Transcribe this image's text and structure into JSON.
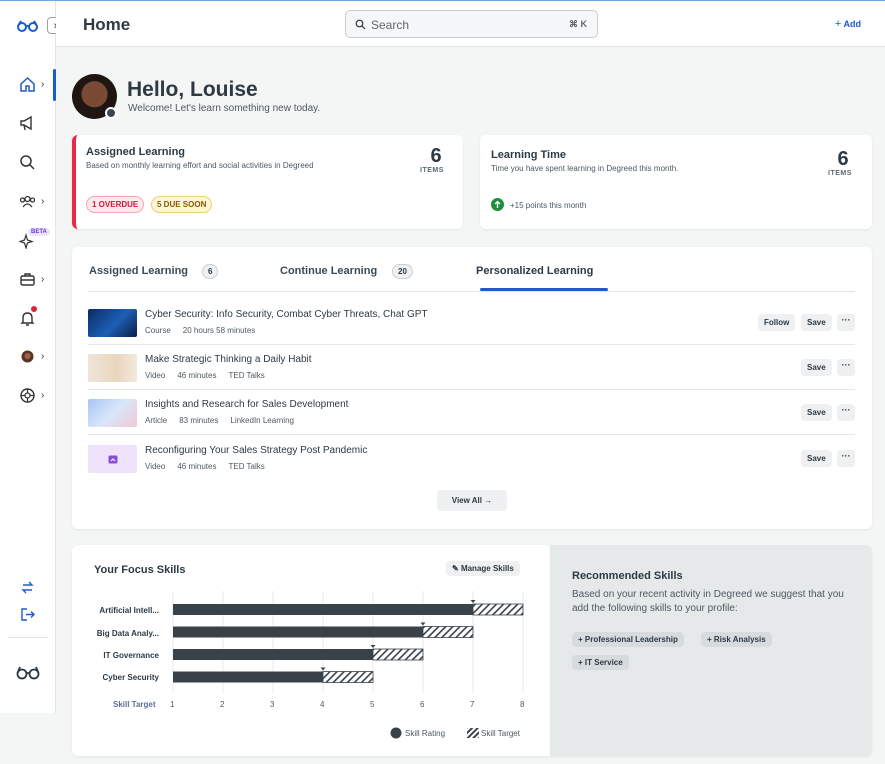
{
  "header": {
    "title": "Home",
    "search_placeholder": "Search",
    "search_shortcut": "⌘ K",
    "add_label": "Add"
  },
  "sidebar": {
    "beta_label": "BETA",
    "icons": [
      "logo-icon",
      "home-icon",
      "megaphone-icon",
      "search-icon",
      "people-icon",
      "sparkle-icon",
      "briefcase-icon",
      "bell-icon",
      "profile-icon",
      "org-icon",
      "switch-icon",
      "logout-icon",
      "degreed-logo-icon"
    ]
  },
  "greeting": {
    "title": "Hello, Louise",
    "subtitle": "Welcome! Let's learn something new today."
  },
  "assigned": {
    "title": "Assigned Learning",
    "subtitle": "Based on monthly learning effort and social activities in Degreed",
    "count": "6",
    "count_label": "ITEMS",
    "overdue": "1 OVERDUE",
    "due_soon": "5 DUE SOON",
    "accent": "#e8294a"
  },
  "learning_time": {
    "title": "Learning Time",
    "subtitle": "Time you have spent learning in Degreed this month.",
    "count": "6",
    "count_label": "ITEMS",
    "points": "+15 points this month"
  },
  "tabs": [
    {
      "label": "Assigned Learning",
      "count": "6"
    },
    {
      "label": "Continue Learning",
      "count": "20"
    },
    {
      "label": "Personalized Learning",
      "count": ""
    }
  ],
  "items": [
    {
      "title": "Cyber Security: Info Security, Combat Cyber Threats, Chat GPT",
      "type": "Course",
      "duration": "20 hours 58 minutes",
      "provider": "",
      "follow": "Follow",
      "save": "Save"
    },
    {
      "title": "Make Strategic Thinking a Daily Habit",
      "type": "Video",
      "duration": "46 minutes",
      "provider": "TED Talks",
      "follow": "",
      "save": "Save"
    },
    {
      "title": "Insights and Research for Sales Development",
      "type": "Article",
      "duration": "83 minutes",
      "provider": "LinkedIn Learning",
      "follow": "",
      "save": "Save"
    },
    {
      "title": "Reconfiguring Your Sales Strategy Post Pandemic",
      "type": "Video",
      "duration": "46 minutes",
      "provider": "TED Talks",
      "follow": "",
      "save": "Save"
    }
  ],
  "view_all": "View All",
  "focus_skills": {
    "title": "Your Focus Skills",
    "manage": "Manage Skills",
    "x_label": "Skill Target",
    "legend_rating": "Skill Rating",
    "legend_target": "Skill Target"
  },
  "chart_data": {
    "type": "bar",
    "categories": [
      "Artificial Intell...",
      "Big Data Analy...",
      "IT Governance",
      "Cyber Security"
    ],
    "series": [
      {
        "name": "Skill Rating",
        "values": [
          7,
          6,
          5,
          4
        ]
      },
      {
        "name": "Skill Target",
        "values": [
          8,
          7,
          6,
          5
        ]
      }
    ],
    "xlim": [
      1,
      8
    ],
    "xticks": [
      1,
      2,
      3,
      4,
      5,
      6,
      7,
      8
    ],
    "xlabel": "Skill Target",
    "colors": {
      "rating": "#394249",
      "target": "#394249"
    }
  },
  "recommended": {
    "title": "Recommended Skills",
    "text": "Based on your recent activity in Degreed we suggest that you add the following skills to your profile:",
    "skills": [
      "Professional Leadership",
      "Risk Analysis",
      "IT Service"
    ]
  }
}
